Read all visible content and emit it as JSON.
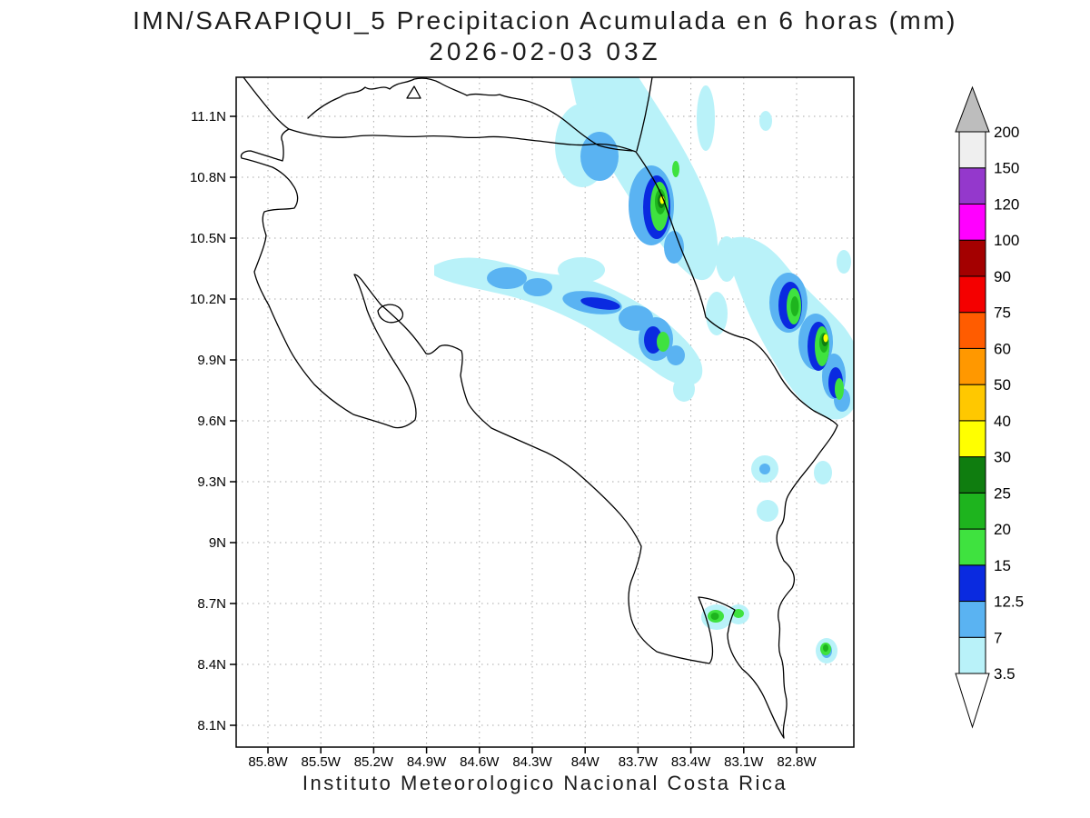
{
  "title": {
    "line1": "IMN/SARAPIQUI_5 Precipitacion Acumulada en 6 horas (mm)",
    "line2": "2026-02-03 03Z"
  },
  "footer": "Instituto Meteorologico Nacional Costa Rica",
  "axes": {
    "lat_ticks": [
      "11.1N",
      "10.8N",
      "10.5N",
      "10.2N",
      "9.9N",
      "9.6N",
      "9.3N",
      "9N",
      "8.7N",
      "8.4N",
      "8.1N"
    ],
    "lon_ticks": [
      "85.8W",
      "85.5W",
      "85.2W",
      "84.9W",
      "84.6W",
      "84.3W",
      "84W",
      "83.7W",
      "83.4W",
      "83.1W",
      "82.8W"
    ]
  },
  "colorbar": {
    "boundary_labels": [
      "3.5",
      "7",
      "12.5",
      "15",
      "20",
      "25",
      "30",
      "40",
      "50",
      "60",
      "75",
      "90",
      "100",
      "120",
      "150",
      "200"
    ],
    "segment_colors_bottom_to_top": [
      "#b9f2f9",
      "#5ab3f2",
      "#0a2ae0",
      "#3fe23f",
      "#1eb41e",
      "#0f7d0f",
      "#ffff00",
      "#ffc800",
      "#ff9800",
      "#ff5c00",
      "#f40000",
      "#a40000",
      "#ff00ff",
      "#9438cc",
      "#efefef"
    ],
    "above_max_color": "#bdbdbd",
    "below_min_color": "#ffffff"
  },
  "map": {
    "region": "Costa Rica",
    "units": "mm",
    "precip_features": [
      {
        "area": "northeast diagonal band (Caribbean slope, Sarapiqui)",
        "max_band_mm": "30-40"
      },
      {
        "area": "central band across the cordillera",
        "max_band_mm": "15-20"
      },
      {
        "area": "southeast Caribbean coastal band near Limon",
        "max_band_mm": "30-40"
      },
      {
        "area": "southern Pacific spots (Golfo Dulce / Osa)",
        "max_band_mm": "20-25"
      },
      {
        "area": "scattered light cells south-central and offshore",
        "max_band_mm": "3.5-7"
      }
    ]
  }
}
